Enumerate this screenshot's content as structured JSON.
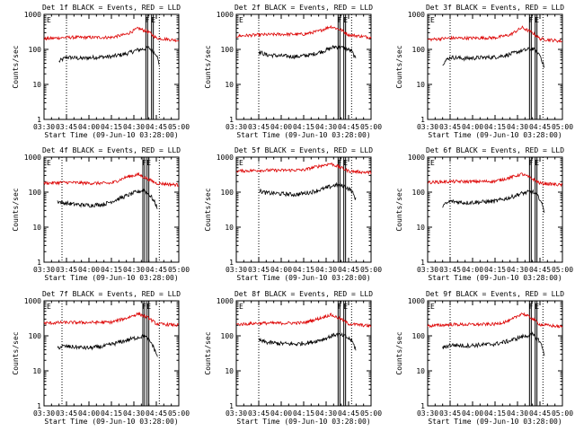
{
  "figure": {
    "background": "#ffffff",
    "event_color": "#000000",
    "lld_color": "#dd0000"
  },
  "chart_data": [
    {
      "type": "line",
      "title": "Det 1f BLACK = Events, RED = LLD",
      "xlabel": "Start Time (09-Jun-10 03:28:00)",
      "ylabel": "Counts/sec",
      "x_ticks": [
        "03:30",
        "03:45",
        "04:00",
        "04:15",
        "04:30",
        "04:45",
        "05:00"
      ],
      "y_ticks": [
        "1",
        "10",
        "100",
        "1000"
      ],
      "ylim": [
        1,
        1000
      ],
      "yscale": "log",
      "xlim": [
        "03:30",
        "05:00"
      ],
      "markers": [
        {
          "label": "F",
          "time": "04:39"
        },
        {
          "label": "E",
          "time": "04:43"
        }
      ],
      "dotted_lines": [
        "03:45",
        "04:47"
      ],
      "band": [
        "04:38",
        "04:43"
      ],
      "series": [
        {
          "name": "Events",
          "color": "#000000",
          "x": [
            "03:40",
            "03:45",
            "03:55",
            "04:05",
            "04:15",
            "04:25",
            "04:32",
            "04:40",
            "04:45",
            "04:47"
          ],
          "values": [
            45,
            60,
            55,
            60,
            62,
            75,
            95,
            110,
            75,
            35
          ]
        },
        {
          "name": "LLD",
          "color": "#dd0000",
          "x": [
            "03:30",
            "03:45",
            "04:00",
            "04:15",
            "04:25",
            "04:33",
            "04:40",
            "04:45",
            "05:00"
          ],
          "values": [
            200,
            220,
            220,
            220,
            270,
            400,
            310,
            210,
            180
          ]
        }
      ]
    },
    {
      "type": "line",
      "title": "Det 2f BLACK = Events, RED = LLD",
      "xlabel": "Start Time (09-Jun-10 03:28:00)",
      "ylabel": "Counts/sec",
      "x_ticks": [
        "03:30",
        "03:45",
        "04:00",
        "04:15",
        "04:30",
        "04:45",
        "05:00"
      ],
      "y_ticks": [
        "1",
        "10",
        "100",
        "1000"
      ],
      "ylim": [
        1,
        1000
      ],
      "yscale": "log",
      "xlim": [
        "03:30",
        "05:00"
      ],
      "markers": [
        {
          "label": "F",
          "time": "04:39"
        },
        {
          "label": "E",
          "time": "04:43"
        }
      ],
      "dotted_lines": [
        "03:45",
        "04:47"
      ],
      "band": [
        "04:38",
        "04:43"
      ],
      "series": [
        {
          "name": "Events",
          "color": "#000000",
          "x": [
            "03:45",
            "03:50",
            "04:00",
            "04:10",
            "04:20",
            "04:30",
            "04:36",
            "04:42",
            "04:47",
            "04:50"
          ],
          "values": [
            85,
            70,
            65,
            62,
            70,
            95,
            120,
            110,
            90,
            50
          ]
        },
        {
          "name": "LLD",
          "color": "#dd0000",
          "x": [
            "03:30",
            "03:45",
            "04:00",
            "04:15",
            "04:25",
            "04:33",
            "04:40",
            "04:45",
            "05:00"
          ],
          "values": [
            240,
            260,
            270,
            270,
            330,
            450,
            360,
            260,
            220
          ]
        }
      ]
    },
    {
      "type": "line",
      "title": "Det 3f BLACK = Events, RED = LLD",
      "xlabel": "Start Time (09-Jun-10 03:28:00)",
      "ylabel": "Counts/sec",
      "x_ticks": [
        "03:30",
        "03:45",
        "04:00",
        "04:15",
        "04:30",
        "04:45",
        "05:00"
      ],
      "y_ticks": [
        "1",
        "10",
        "100",
        "1000"
      ],
      "ylim": [
        1,
        1000
      ],
      "yscale": "log",
      "xlim": [
        "03:30",
        "05:00"
      ],
      "markers": [
        {
          "label": "F",
          "time": "04:39"
        },
        {
          "label": "E",
          "time": "04:43"
        }
      ],
      "dotted_lines": [
        "03:45",
        "04:47"
      ],
      "band": [
        "04:38",
        "04:43"
      ],
      "series": [
        {
          "name": "Events",
          "color": "#000000",
          "x": [
            "03:40",
            "03:45",
            "03:55",
            "04:05",
            "04:15",
            "04:25",
            "04:32",
            "04:40",
            "04:45",
            "04:48"
          ],
          "values": [
            40,
            60,
            55,
            58,
            60,
            72,
            90,
            105,
            70,
            30
          ]
        },
        {
          "name": "LLD",
          "color": "#dd0000",
          "x": [
            "03:30",
            "03:45",
            "04:00",
            "04:15",
            "04:25",
            "04:33",
            "04:40",
            "04:45",
            "05:00"
          ],
          "values": [
            190,
            210,
            210,
            215,
            260,
            420,
            300,
            200,
            170
          ]
        }
      ]
    },
    {
      "type": "line",
      "title": "Det 4f BLACK = Events, RED = LLD",
      "xlabel": "Start Time (09-Jun-10 03:28:00)",
      "ylabel": "Counts/sec",
      "x_ticks": [
        "03:30",
        "03:45",
        "04:00",
        "04:15",
        "04:30",
        "04:45",
        "05:00"
      ],
      "y_ticks": [
        "1",
        "10",
        "100",
        "1000"
      ],
      "ylim": [
        1,
        1000
      ],
      "yscale": "log",
      "xlim": [
        "03:30",
        "05:00"
      ],
      "markers": [
        {
          "label": "F",
          "time": "04:37"
        },
        {
          "label": "E",
          "time": "04:40"
        }
      ],
      "dotted_lines": [
        "03:42",
        "04:47"
      ],
      "band": [
        "04:36",
        "04:40"
      ],
      "series": [
        {
          "name": "Events",
          "color": "#000000",
          "x": [
            "03:39",
            "03:42",
            "03:50",
            "04:00",
            "04:10",
            "04:20",
            "04:30",
            "04:37",
            "04:42",
            "04:46"
          ],
          "values": [
            55,
            50,
            45,
            42,
            45,
            65,
            95,
            115,
            70,
            35
          ]
        },
        {
          "name": "LLD",
          "color": "#dd0000",
          "x": [
            "03:30",
            "03:45",
            "04:00",
            "04:15",
            "04:25",
            "04:33",
            "04:40",
            "04:45",
            "05:00"
          ],
          "values": [
            180,
            190,
            180,
            180,
            270,
            320,
            230,
            180,
            160
          ]
        }
      ]
    },
    {
      "type": "line",
      "title": "Det 5f BLACK = Events, RED = LLD",
      "xlabel": "Start Time (09-Jun-10 03:28:00)",
      "ylabel": "Counts/sec",
      "x_ticks": [
        "03:30",
        "03:45",
        "04:00",
        "04:15",
        "04:30",
        "04:45",
        "05:00"
      ],
      "y_ticks": [
        "1",
        "10",
        "100",
        "1000"
      ],
      "ylim": [
        1,
        1000
      ],
      "yscale": "log",
      "xlim": [
        "03:30",
        "05:00"
      ],
      "markers": [
        {
          "label": "F",
          "time": "04:39"
        },
        {
          "label": "E",
          "time": "04:43"
        }
      ],
      "dotted_lines": [
        "03:45",
        "04:47"
      ],
      "band": [
        "04:38",
        "04:43"
      ],
      "series": [
        {
          "name": "Events",
          "color": "#000000",
          "x": [
            "03:45",
            "03:50",
            "04:00",
            "04:10",
            "04:20",
            "04:30",
            "04:36",
            "04:42",
            "04:47",
            "04:50"
          ],
          "values": [
            110,
            95,
            90,
            85,
            100,
            130,
            160,
            150,
            110,
            60
          ]
        },
        {
          "name": "LLD",
          "color": "#dd0000",
          "x": [
            "03:30",
            "03:45",
            "04:00",
            "04:15",
            "04:25",
            "04:33",
            "04:40",
            "04:45",
            "05:00"
          ],
          "values": [
            400,
            420,
            420,
            430,
            550,
            650,
            500,
            400,
            360
          ]
        }
      ]
    },
    {
      "type": "line",
      "title": "Det 6f BLACK = Events, RED = LLD",
      "xlabel": "Start Time (09-Jun-10 03:28:00)",
      "ylabel": "Counts/sec",
      "x_ticks": [
        "03:30",
        "03:45",
        "04:00",
        "04:15",
        "04:30",
        "04:45",
        "05:00"
      ],
      "y_ticks": [
        "1",
        "10",
        "100",
        "1000"
      ],
      "ylim": [
        1,
        1000
      ],
      "yscale": "log",
      "xlim": [
        "03:30",
        "05:00"
      ],
      "markers": [
        {
          "label": "F",
          "time": "04:39"
        },
        {
          "label": "E",
          "time": "04:43"
        }
      ],
      "dotted_lines": [
        "03:45",
        "04:47"
      ],
      "band": [
        "04:38",
        "04:43"
      ],
      "series": [
        {
          "name": "Events",
          "color": "#000000",
          "x": [
            "03:40",
            "03:45",
            "03:55",
            "04:05",
            "04:15",
            "04:25",
            "04:32",
            "04:40",
            "04:45",
            "04:48"
          ],
          "values": [
            40,
            55,
            50,
            52,
            55,
            70,
            90,
            105,
            65,
            28
          ]
        },
        {
          "name": "LLD",
          "color": "#dd0000",
          "x": [
            "03:30",
            "03:45",
            "04:00",
            "04:15",
            "04:25",
            "04:33",
            "04:40",
            "04:45",
            "05:00"
          ],
          "values": [
            190,
            200,
            200,
            205,
            260,
            330,
            240,
            180,
            160
          ]
        }
      ]
    },
    {
      "type": "line",
      "title": "Det 7f BLACK = Events, RED = LLD",
      "xlabel": "Start Time (09-Jun-10 03:28:00)",
      "ylabel": "Counts/sec",
      "x_ticks": [
        "03:30",
        "03:45",
        "04:00",
        "04:15",
        "04:30",
        "04:45",
        "05:00"
      ],
      "y_ticks": [
        "1",
        "10",
        "100",
        "1000"
      ],
      "ylim": [
        1,
        1000
      ],
      "yscale": "log",
      "xlim": [
        "03:30",
        "05:00"
      ],
      "markers": [
        {
          "label": "F",
          "time": "04:37"
        },
        {
          "label": "E",
          "time": "04:40"
        }
      ],
      "dotted_lines": [
        "03:42",
        "04:47"
      ],
      "band": [
        "04:36",
        "04:40"
      ],
      "series": [
        {
          "name": "Events",
          "color": "#000000",
          "x": [
            "03:39",
            "03:42",
            "03:50",
            "04:00",
            "04:10",
            "04:20",
            "04:30",
            "04:37",
            "04:42",
            "04:46"
          ],
          "values": [
            45,
            50,
            48,
            45,
            50,
            65,
            85,
            100,
            60,
            25
          ]
        },
        {
          "name": "LLD",
          "color": "#dd0000",
          "x": [
            "03:30",
            "03:45",
            "04:00",
            "04:15",
            "04:25",
            "04:33",
            "04:40",
            "04:45",
            "05:00"
          ],
          "values": [
            230,
            240,
            240,
            245,
            320,
            430,
            320,
            220,
            200
          ]
        }
      ]
    },
    {
      "type": "line",
      "title": "Det 8f BLACK = Events, RED = LLD",
      "xlabel": "Start Time (09-Jun-10 03:28:00)",
      "ylabel": "Counts/sec",
      "x_ticks": [
        "03:30",
        "03:45",
        "04:00",
        "04:15",
        "04:30",
        "04:45",
        "05:00"
      ],
      "y_ticks": [
        "1",
        "10",
        "100",
        "1000"
      ],
      "ylim": [
        1,
        1000
      ],
      "yscale": "log",
      "xlim": [
        "03:30",
        "05:00"
      ],
      "markers": [
        {
          "label": "F",
          "time": "04:39"
        },
        {
          "label": "E",
          "time": "04:43"
        }
      ],
      "dotted_lines": [
        "03:45",
        "04:47"
      ],
      "band": [
        "04:38",
        "04:43"
      ],
      "series": [
        {
          "name": "Events",
          "color": "#000000",
          "x": [
            "03:45",
            "03:50",
            "04:00",
            "04:10",
            "04:20",
            "04:30",
            "04:36",
            "04:42",
            "04:47",
            "04:50"
          ],
          "values": [
            75,
            65,
            60,
            58,
            65,
            85,
            110,
            100,
            75,
            40
          ]
        },
        {
          "name": "LLD",
          "color": "#dd0000",
          "x": [
            "03:30",
            "03:45",
            "04:00",
            "04:15",
            "04:25",
            "04:33",
            "04:40",
            "04:45",
            "05:00"
          ],
          "values": [
            210,
            230,
            230,
            235,
            310,
            400,
            300,
            220,
            190
          ]
        }
      ]
    },
    {
      "type": "line",
      "title": "Det 9f BLACK = Events, RED = LLD",
      "xlabel": "Start Time (09-Jun-10 03:28:00)",
      "ylabel": "Counts/sec",
      "x_ticks": [
        "03:30",
        "03:45",
        "04:00",
        "04:15",
        "04:30",
        "04:45",
        "05:00"
      ],
      "y_ticks": [
        "1",
        "10",
        "100",
        "1000"
      ],
      "ylim": [
        1,
        1000
      ],
      "yscale": "log",
      "xlim": [
        "03:30",
        "05:00"
      ],
      "markers": [
        {
          "label": "F",
          "time": "04:39"
        },
        {
          "label": "E",
          "time": "04:43"
        }
      ],
      "dotted_lines": [
        "03:45",
        "04:47"
      ],
      "band": [
        "04:38",
        "04:43"
      ],
      "series": [
        {
          "name": "Events",
          "color": "#000000",
          "x": [
            "03:40",
            "03:45",
            "03:55",
            "04:05",
            "04:15",
            "04:25",
            "04:32",
            "04:40",
            "04:45",
            "04:48"
          ],
          "values": [
            45,
            55,
            52,
            55,
            58,
            72,
            92,
            108,
            70,
            30
          ]
        },
        {
          "name": "LLD",
          "color": "#dd0000",
          "x": [
            "03:30",
            "03:45",
            "04:00",
            "04:15",
            "04:25",
            "04:33",
            "04:40",
            "04:45",
            "05:00"
          ],
          "values": [
            190,
            210,
            210,
            215,
            270,
            440,
            310,
            210,
            180
          ]
        }
      ]
    }
  ]
}
